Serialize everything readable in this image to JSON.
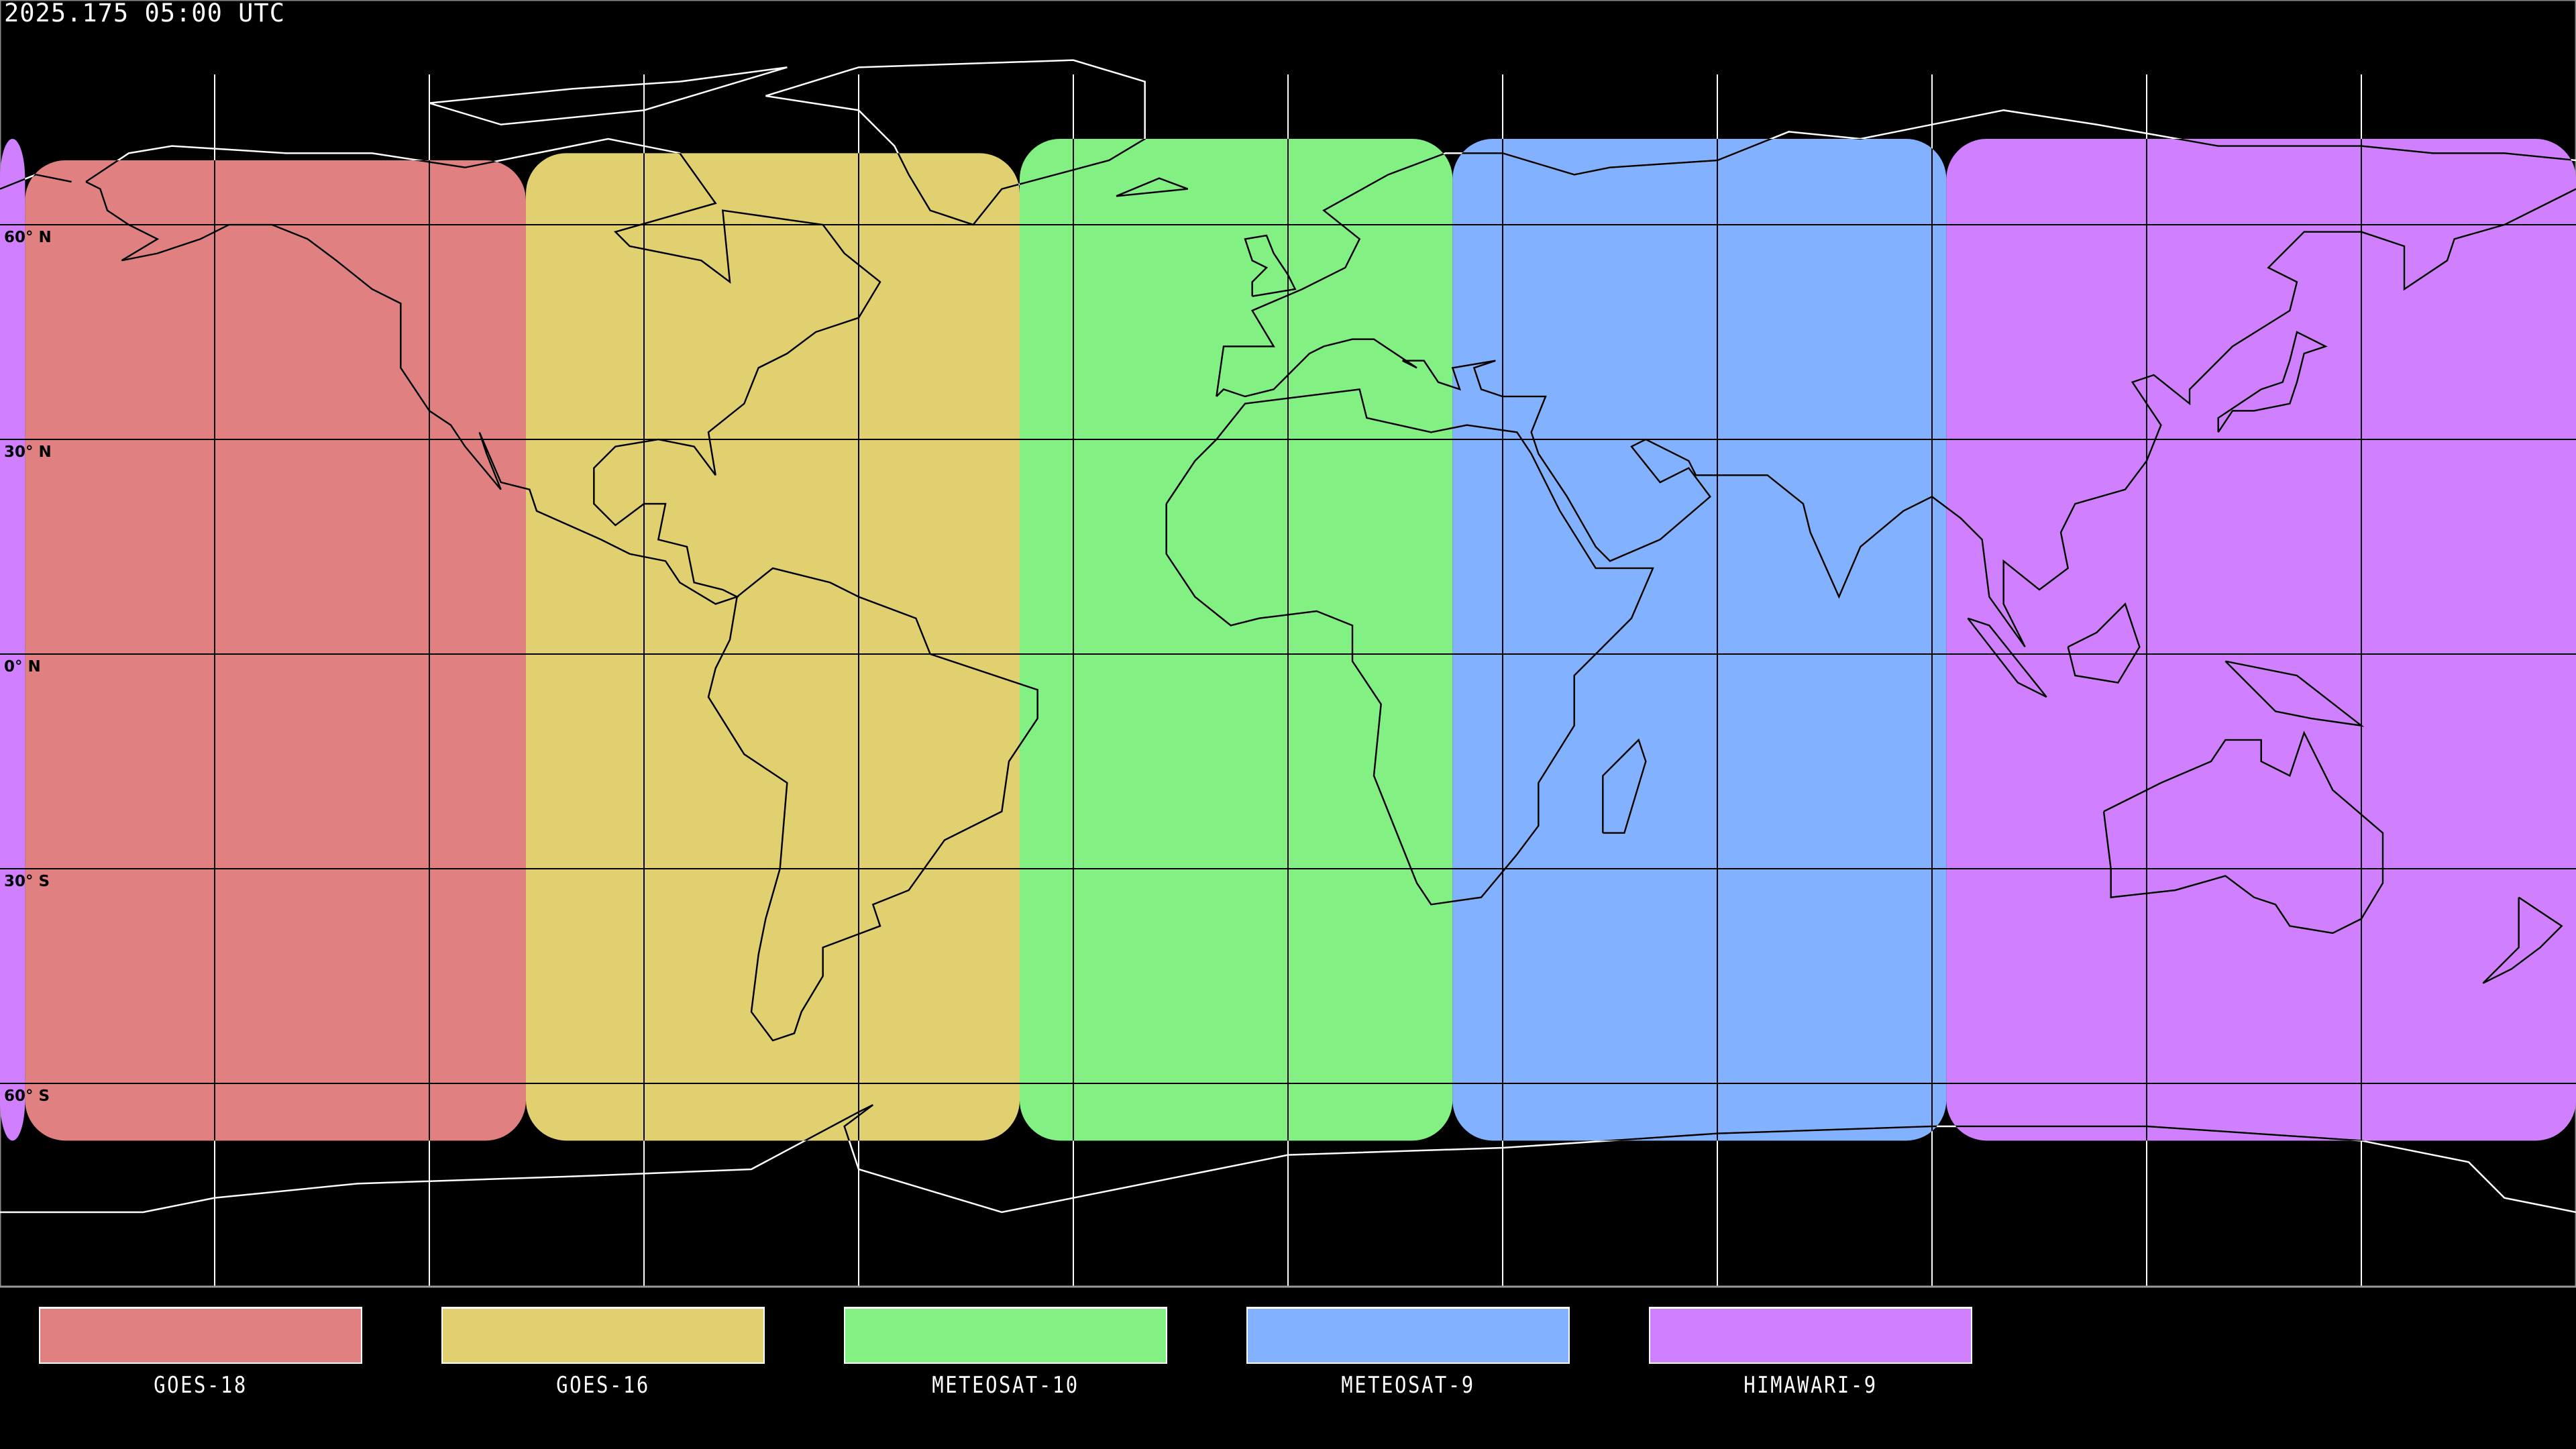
{
  "header": {
    "title": "2025.175 05:00 UTC"
  },
  "map": {
    "projection": "equirectangular",
    "center_longitude": 0,
    "graticule_spacing_deg": 30,
    "lat_labels": [
      "60° N",
      "30° N",
      "0° N",
      "30° S",
      "60° S"
    ],
    "lat_label_values": [
      60,
      30,
      0,
      -30,
      -60
    ]
  },
  "coverage": [
    {
      "name": "GOES-18",
      "color": "#e08080",
      "lon": [
        -176.5,
        -106.5
      ],
      "lat": [
        -68,
        69
      ]
    },
    {
      "name": "GOES-16",
      "color": "#e0d070",
      "lon": [
        -106.5,
        -37.5
      ],
      "lat": [
        -68,
        70
      ]
    },
    {
      "name": "METEOSAT-10",
      "color": "#82f082",
      "lon": [
        -37.5,
        23
      ],
      "lat": [
        -68,
        72
      ]
    },
    {
      "name": "METEOSAT-9",
      "color": "#82b2ff",
      "lon": [
        23,
        92
      ],
      "lat": [
        -68,
        72
      ]
    },
    {
      "name": "HIMAWARI-9",
      "color": "#d080ff",
      "lon": [
        92,
        183.5
      ],
      "lat": [
        -68,
        72
      ]
    }
  ],
  "legend": [
    {
      "label": "GOES-18",
      "color": "#e08080"
    },
    {
      "label": "GOES-16",
      "color": "#e0d070"
    },
    {
      "label": "METEOSAT-10",
      "color": "#82f082"
    },
    {
      "label": "METEOSAT-9",
      "color": "#82b2ff"
    },
    {
      "label": "HIMAWARI-9",
      "color": "#d080ff"
    }
  ]
}
